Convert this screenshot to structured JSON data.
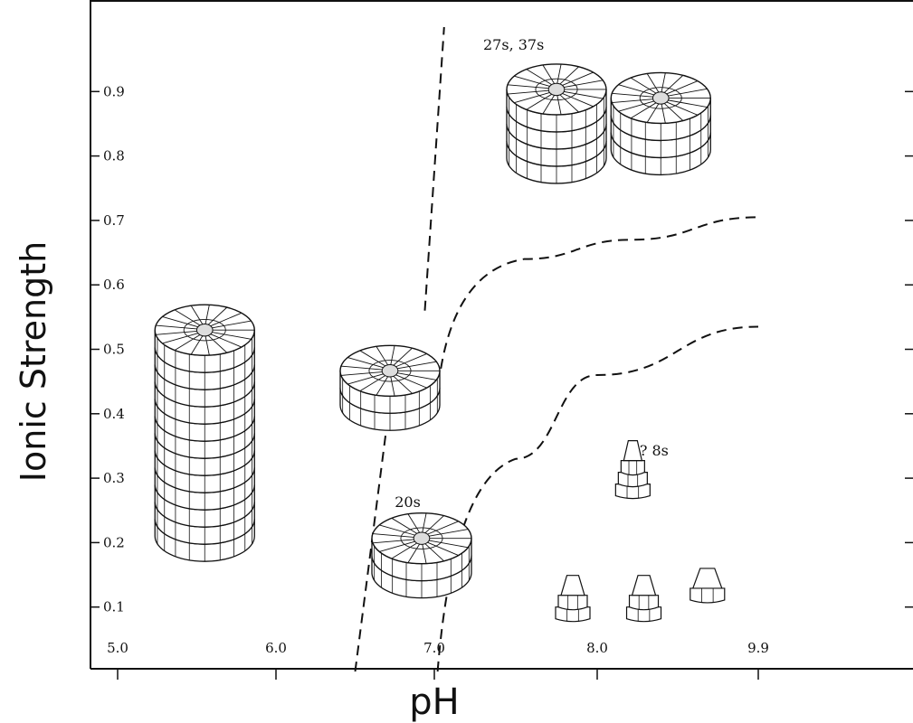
{
  "chart_data": {
    "type": "scatter",
    "xlabel": "pH",
    "ylabel": "Ionic Strength",
    "x_tick_labels": [
      "5.0",
      "6.0",
      "7.0",
      "8.0",
      "9.9"
    ],
    "y_tick_labels": [
      "0.1",
      "0.2",
      "0.3",
      "0.4",
      "0.5",
      "0.6",
      "0.7",
      "0.8",
      "0.9"
    ],
    "ylim": [
      0.0,
      1.0
    ],
    "annotations": [
      {
        "text": "27s, 37s",
        "x": 7.3,
        "y": 0.965
      },
      {
        "text": "20s",
        "x": 6.75,
        "y": 0.255
      },
      {
        "text": "? 8s",
        "x": 8.5,
        "y": 0.335
      }
    ],
    "boundaries": [
      {
        "style": "dashed",
        "points": [
          [
            6.5,
            0.0
          ],
          [
            6.72,
            0.42
          ]
        ]
      },
      {
        "style": "dashed",
        "points": [
          [
            6.94,
            0.56
          ],
          [
            7.06,
            1.0
          ]
        ]
      },
      {
        "style": "dashed",
        "points": [
          [
            7.04,
            0.47
          ],
          [
            7.55,
            0.64
          ],
          [
            8.4,
            0.67
          ],
          [
            9.9,
            0.705
          ]
        ]
      },
      {
        "style": "dashed",
        "points": [
          [
            7.02,
            0.0
          ],
          [
            7.5,
            0.33
          ],
          [
            8.0,
            0.46
          ],
          [
            9.9,
            0.535
          ]
        ]
      }
    ],
    "structures": [
      {
        "kind": "disk-stack",
        "x": 5.55,
        "y": 0.37,
        "layers": 12
      },
      {
        "kind": "disk-stack",
        "x": 6.72,
        "y": 0.44,
        "layers": 2
      },
      {
        "kind": "disk-stack",
        "x": 6.92,
        "y": 0.18,
        "layers": 2
      },
      {
        "kind": "disk-stack",
        "x": 7.75,
        "y": 0.85,
        "layers": 4
      },
      {
        "kind": "disk-stack",
        "x": 8.75,
        "y": 0.85,
        "layers": 3
      },
      {
        "kind": "wedge-stack",
        "x": 8.42,
        "y": 0.3,
        "layers": 3
      },
      {
        "kind": "wedge-stack",
        "x": 7.85,
        "y": 0.1,
        "layers": 2
      },
      {
        "kind": "wedge-stack",
        "x": 8.55,
        "y": 0.1,
        "layers": 2
      },
      {
        "kind": "wedge-stack",
        "x": 9.3,
        "y": 0.12,
        "layers": 1
      }
    ]
  }
}
